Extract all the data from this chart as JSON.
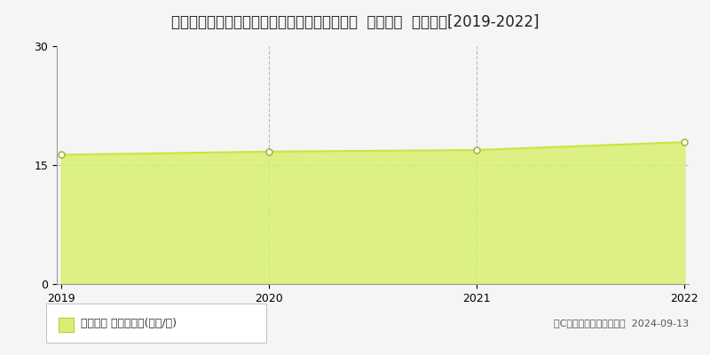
{
  "title": "北海道札幌市北区太平７条４丁目４４番３１外  地価公示  地価推移[2019-2022]",
  "years": [
    2019,
    2020,
    2021,
    2022
  ],
  "values": [
    16.3,
    16.7,
    16.9,
    17.9
  ],
  "ylim": [
    0,
    30
  ],
  "yticks": [
    0,
    15,
    30
  ],
  "line_color": "#c8e641",
  "fill_color": "#d8f070",
  "fill_alpha": 0.85,
  "marker_color": "#ffffff",
  "marker_edge_color": "#a8b840",
  "grid_color": "#bbbbbb",
  "background_color": "#f5f5f5",
  "legend_label": "地価公示 平均坪単価(万円/坪)",
  "copyright_text": "（C）土地価格ドットコム  2024-09-13",
  "title_fontsize": 12,
  "tick_fontsize": 9,
  "legend_fontsize": 9,
  "copyright_fontsize": 8
}
